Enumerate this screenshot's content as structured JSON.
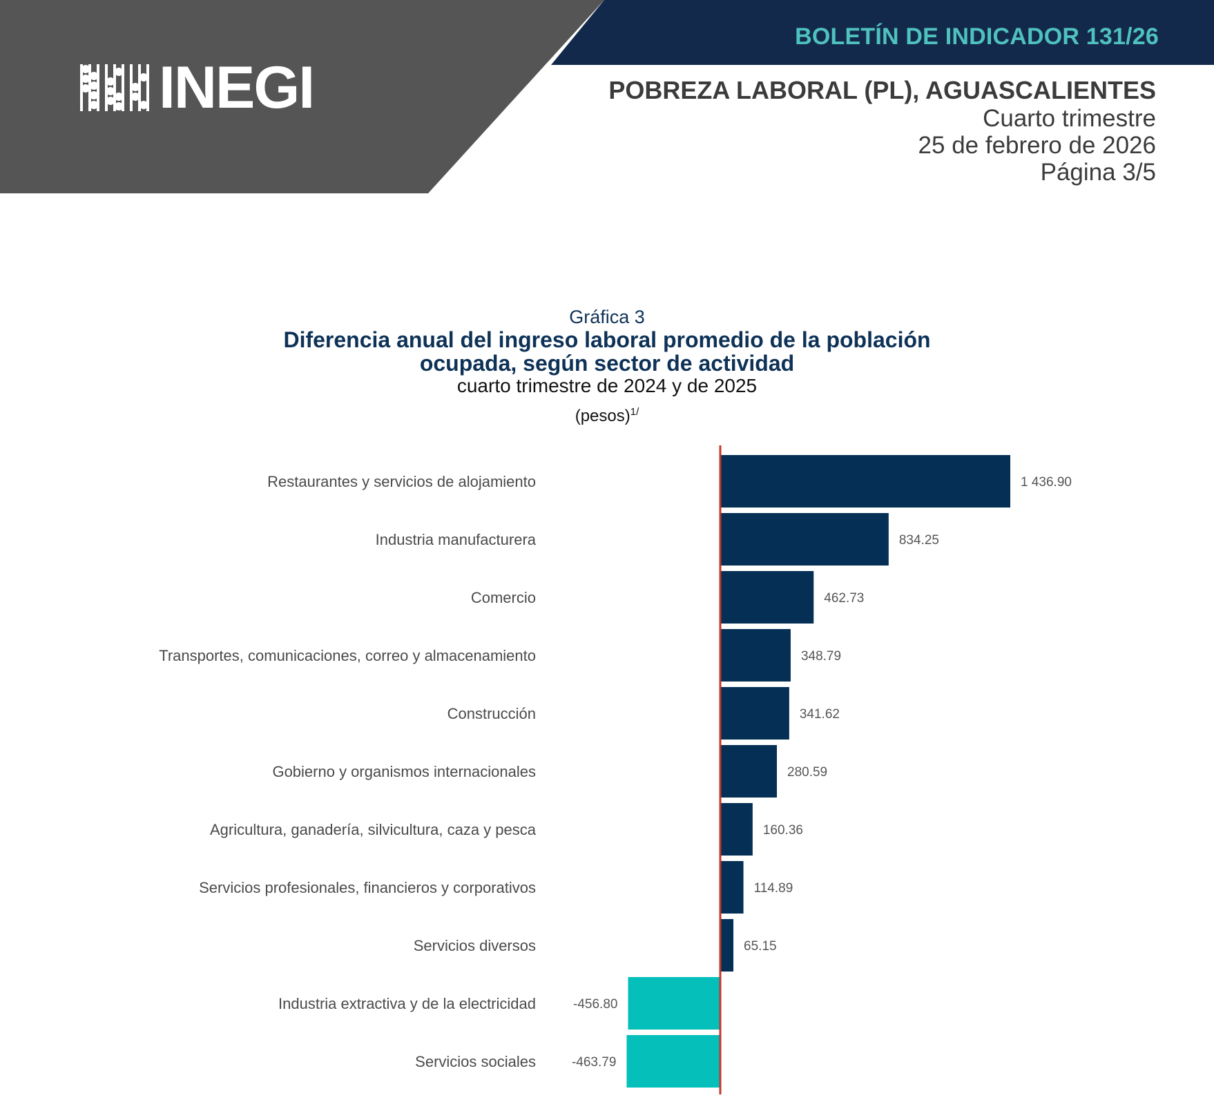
{
  "header": {
    "logo_text": "INEGI",
    "bulletin": "BOLETÍN DE INDICADOR 131/26",
    "title": "POBREZA LABORAL (PL), AGUASCALIENTES",
    "period": "Cuarto trimestre",
    "date": "25 de febrero de 2026",
    "page": "Página 3/5"
  },
  "colors": {
    "header_gray": "#555555",
    "header_navy": "#13294b",
    "bulletin_teal": "#4fc1be",
    "bar_positive": "#052f55",
    "bar_negative": "#05bfbb",
    "zero_line": "#c0392b"
  },
  "chart_data": {
    "type": "bar",
    "orientation": "horizontal",
    "label": "Gráfica 3",
    "title_line1": "Diferencia anual del ingreso laboral promedio de la población",
    "title_line2": "ocupada, según sector de actividad",
    "subtitle": "cuarto trimestre de 2024 y de 2025",
    "units": "(pesos)",
    "units_note": "1/",
    "categories": [
      "Restaurantes y servicios de alojamiento",
      "Industria manufacturera",
      "Comercio",
      "Transportes, comunicaciones, correo y almacenamiento",
      "Construcción",
      "Gobierno y organismos internacionales",
      "Agricultura, ganadería, silvicultura, caza y pesca",
      "Servicios profesionales, financieros y corporativos",
      "Servicios diversos",
      "Industria extractiva y de la electricidad",
      "Servicios sociales"
    ],
    "values": [
      1436.9,
      834.25,
      462.73,
      348.79,
      341.62,
      280.59,
      160.36,
      114.89,
      65.15,
      -456.8,
      -463.79
    ],
    "value_labels": [
      "1 436.90",
      "834.25",
      "462.73",
      "348.79",
      "341.62",
      "280.59",
      "160.36",
      "114.89",
      "65.15",
      "-456.80",
      "-463.79"
    ]
  }
}
